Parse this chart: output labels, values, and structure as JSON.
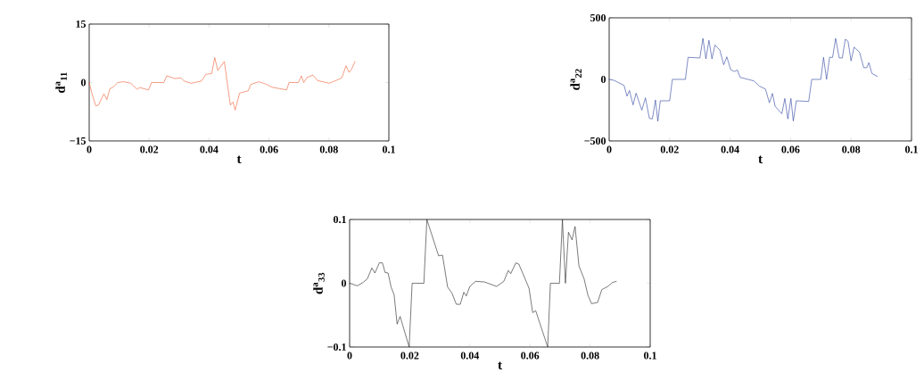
{
  "chart_data": [
    {
      "type": "line",
      "xlabel": "t",
      "ylabel": "d$^{a}$$_{11}$",
      "xlim": [
        0,
        0.1
      ],
      "ylim": [
        -15,
        15
      ],
      "xticks": [
        0,
        0.02,
        0.04,
        0.06,
        0.08,
        0.1
      ],
      "yticks": [
        {
          "value": -15,
          "label": "−15"
        },
        0,
        15
      ],
      "x": [
        0,
        0.001,
        0.0022,
        0.0031,
        0.0049,
        0.0059,
        0.0069,
        0.008,
        0.0095,
        0.0115,
        0.0139,
        0.0159,
        0.0169,
        0.0198,
        0.0208,
        0.0249,
        0.0259,
        0.0286,
        0.0306,
        0.0316,
        0.034,
        0.0375,
        0.0389,
        0.0409,
        0.0419,
        0.0429,
        0.0451,
        0.0471,
        0.048,
        0.0487,
        0.0502,
        0.0531,
        0.0539,
        0.0566,
        0.059,
        0.061,
        0.0659,
        0.0667,
        0.0698,
        0.0708,
        0.0716,
        0.0727,
        0.0747,
        0.0762,
        0.0801,
        0.0826,
        0.0843,
        0.0857,
        0.0867,
        0.0876,
        0.0887
      ],
      "series": [
        {
          "color": "#f05a30",
          "values": [
            0,
            -3.1,
            -6,
            -5.8,
            -2.9,
            -4.4,
            -1.6,
            -1.2,
            0,
            0.2,
            -0.2,
            -1.7,
            -1.3,
            -1.9,
            0,
            0,
            1.7,
            1.0,
            1.2,
            0.4,
            -0.2,
            0.4,
            2.1,
            2.3,
            6.4,
            3.1,
            5.4,
            -5.8,
            -5.0,
            -7.1,
            -2.7,
            -2.1,
            -0.5,
            0.2,
            -0.4,
            -1.2,
            -1.9,
            0,
            0,
            1.7,
            0,
            1.3,
            1.9,
            0.5,
            -0.2,
            0.6,
            1.2,
            4.3,
            2.6,
            3.5,
            5.4
          ]
        }
      ]
    },
    {
      "type": "line",
      "xlabel": "t",
      "ylabel": "d$^{a}$$_{22}$",
      "xlim": [
        0,
        0.1
      ],
      "ylim": [
        -500,
        500
      ],
      "xticks": [
        0,
        0.02,
        0.04,
        0.06,
        0.08,
        0.1
      ],
      "yticks": [
        {
          "value": -500,
          "label": "−500"
        },
        0,
        500
      ],
      "x": [
        0,
        0.0015,
        0.0049,
        0.0059,
        0.0067,
        0.0079,
        0.0089,
        0.0108,
        0.012,
        0.0133,
        0.0143,
        0.0153,
        0.0161,
        0.0169,
        0.02,
        0.0209,
        0.0252,
        0.0261,
        0.03,
        0.031,
        0.032,
        0.033,
        0.034,
        0.035,
        0.0366,
        0.0379,
        0.0389,
        0.0402,
        0.0414,
        0.0424,
        0.0433,
        0.0478,
        0.0497,
        0.0517,
        0.053,
        0.054,
        0.0549,
        0.0571,
        0.0581,
        0.0591,
        0.0601,
        0.0609,
        0.0619,
        0.066,
        0.067,
        0.07,
        0.0709,
        0.0719,
        0.0729,
        0.0739,
        0.0749,
        0.0761,
        0.0771,
        0.0781,
        0.079,
        0.08,
        0.081,
        0.0828,
        0.0842,
        0.0852,
        0.0859,
        0.0869,
        0.0887
      ],
      "series": [
        {
          "color": "#2a3f9d",
          "values": [
            0,
            -7,
            -48,
            -136,
            -90,
            -207,
            -112,
            -250,
            -150,
            -317,
            -321,
            -167,
            -340,
            -174,
            -174,
            0,
            0,
            179,
            174,
            333,
            167,
            317,
            167,
            279,
            238,
            119,
            183,
            79,
            64,
            76,
            17,
            -12,
            -55,
            -79,
            -190,
            -114,
            -219,
            -279,
            -155,
            -321,
            -155,
            -338,
            -174,
            -179,
            0,
            0,
            179,
            0,
            179,
            179,
            333,
            174,
            174,
            326,
            310,
            150,
            262,
            221,
            95,
            95,
            136,
            48,
            24
          ]
        }
      ]
    },
    {
      "type": "line",
      "xlabel": "t",
      "ylabel": "d$^{a}$$_{33}$",
      "xlim": [
        0,
        0.1
      ],
      "ylim": [
        -0.1,
        0.1
      ],
      "xticks": [
        0,
        0.02,
        0.04,
        0.06,
        0.08,
        0.1
      ],
      "yticks": [
        {
          "value": -0.1,
          "label": "−0.1"
        },
        0,
        0.1
      ],
      "x": [
        0,
        0.0025,
        0.0044,
        0.0059,
        0.0074,
        0.0084,
        0.0099,
        0.0109,
        0.0118,
        0.0128,
        0.0138,
        0.0148,
        0.0158,
        0.0168,
        0.0198,
        0.0208,
        0.0247,
        0.0257,
        0.0296,
        0.0309,
        0.0326,
        0.034,
        0.0355,
        0.0368,
        0.038,
        0.0388,
        0.04,
        0.0419,
        0.0449,
        0.0489,
        0.0513,
        0.0528,
        0.0536,
        0.0553,
        0.0563,
        0.0582,
        0.0597,
        0.0609,
        0.0619,
        0.0659,
        0.0668,
        0.0698,
        0.0708,
        0.0718,
        0.0728,
        0.074,
        0.075,
        0.0763,
        0.078,
        0.0793,
        0.0805,
        0.0825,
        0.0839,
        0.0859,
        0.0874,
        0.0887
      ],
      "series": [
        {
          "color": "#222222",
          "values": [
            0,
            -0.004,
            0.001,
            0.007,
            0.024,
            0.016,
            0.032,
            0.032,
            0.017,
            0.016,
            -0.006,
            -0.018,
            -0.064,
            -0.052,
            -0.1,
            0,
            0,
            0.1,
            0.043,
            0.044,
            -0.006,
            -0.015,
            -0.033,
            -0.033,
            -0.014,
            -0.02,
            -0.005,
            0.003,
            0.002,
            -0.005,
            0.003,
            0.02,
            0.015,
            0.032,
            0.03,
            0.009,
            -0.008,
            -0.046,
            -0.043,
            -0.1,
            0,
            0,
            0.1,
            0,
            0.08,
            0.068,
            0.089,
            0.027,
            0.007,
            -0.019,
            -0.032,
            -0.03,
            -0.01,
            -0.005,
            0.001,
            0.003
          ]
        }
      ]
    }
  ]
}
